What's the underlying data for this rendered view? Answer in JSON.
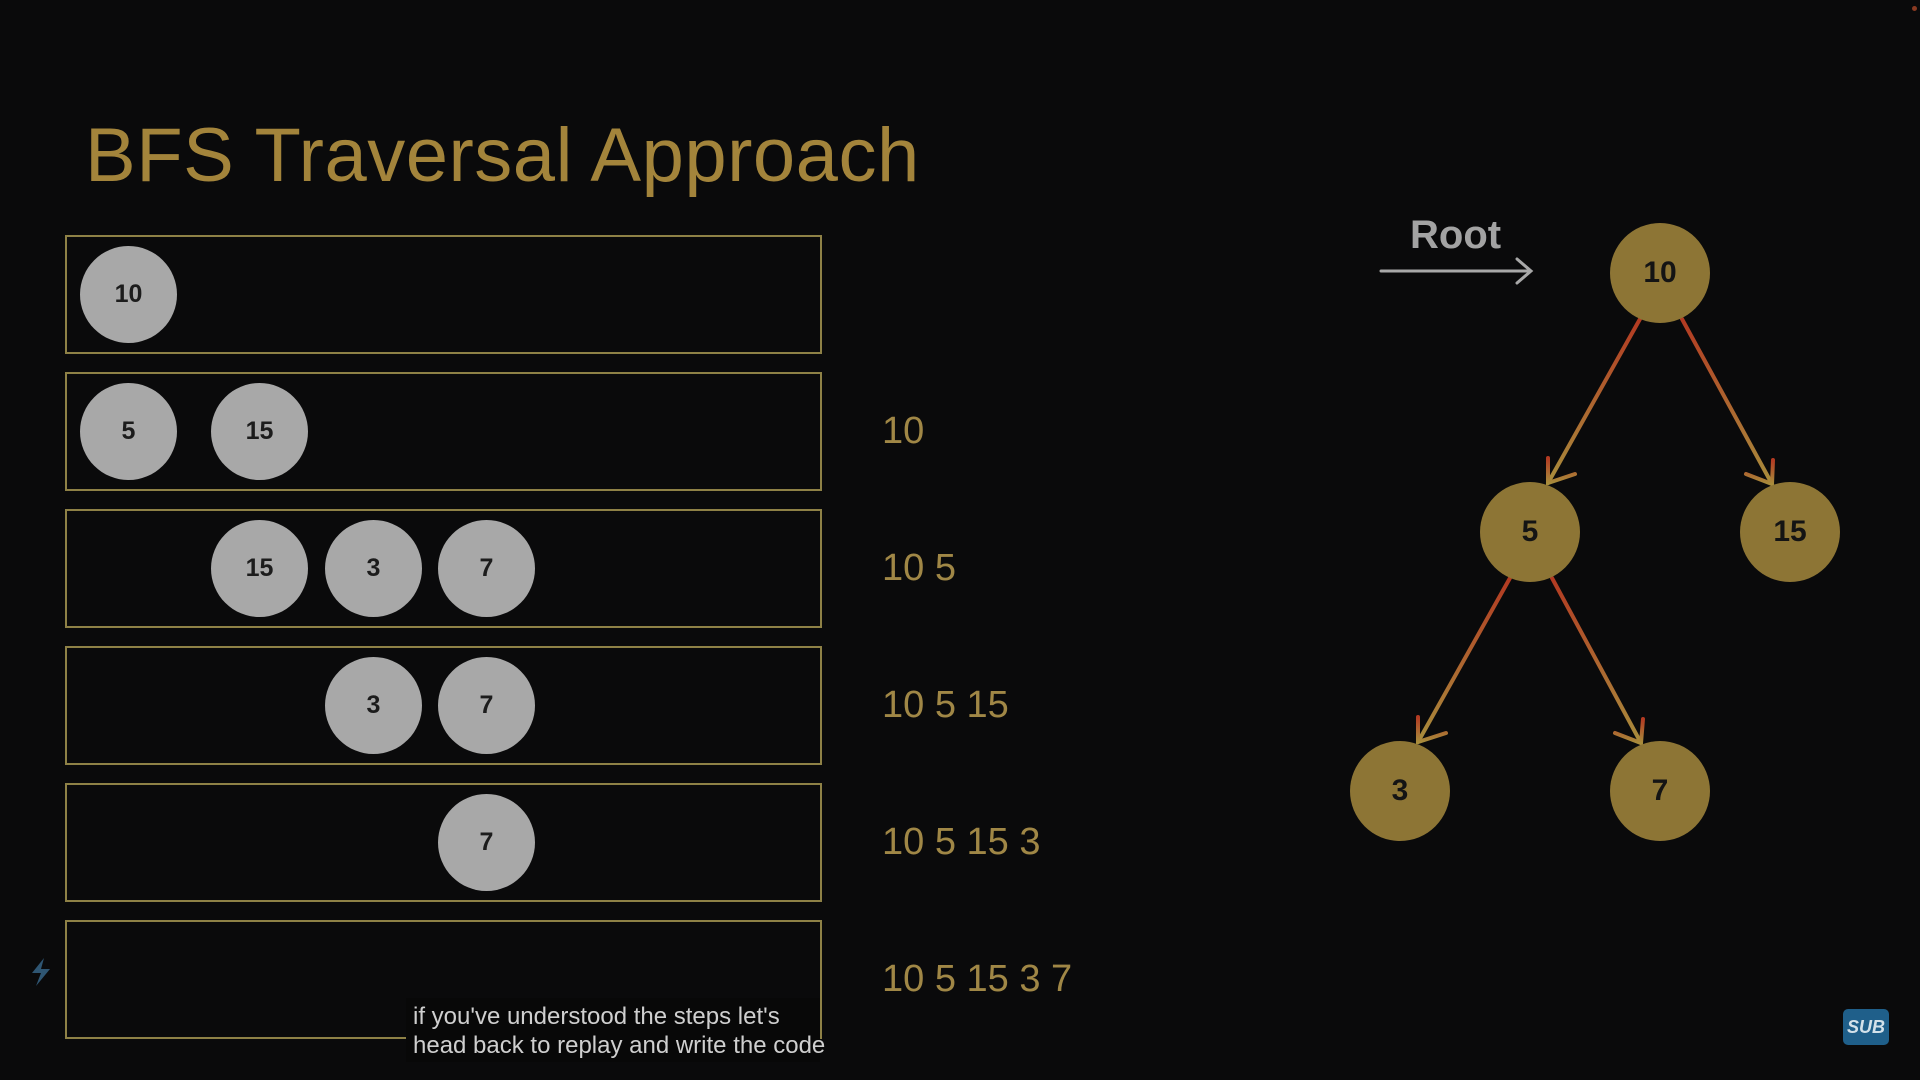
{
  "slide": {
    "title": "BFS Traversal Approach"
  },
  "queue_rows": [
    {
      "nodes": [
        "10"
      ],
      "output": ""
    },
    {
      "nodes": [
        "5",
        "15"
      ],
      "output": "10"
    },
    {
      "nodes": [
        "15",
        "3",
        "7"
      ],
      "output": "10 5"
    },
    {
      "nodes": [
        "3",
        "7"
      ],
      "output": "10 5 15"
    },
    {
      "nodes": [
        "7"
      ],
      "output": "10 5 15 3"
    },
    {
      "nodes": [],
      "output": "10 5 15 3 7"
    }
  ],
  "tree": {
    "root_label": "Root",
    "nodes": [
      {
        "id": "n10",
        "label": "10"
      },
      {
        "id": "n5",
        "label": "5"
      },
      {
        "id": "n15",
        "label": "15"
      },
      {
        "id": "n3",
        "label": "3"
      },
      {
        "id": "n7",
        "label": "7"
      }
    ],
    "edges": [
      {
        "from": "n10",
        "to": "n5"
      },
      {
        "from": "n10",
        "to": "n15"
      },
      {
        "from": "n5",
        "to": "n3"
      },
      {
        "from": "n5",
        "to": "n7"
      }
    ]
  },
  "subtitle": {
    "line1": "if you've understood the steps let's",
    "line2": "head back to replay and write the code"
  },
  "badge": {
    "label": "SUB"
  },
  "colors": {
    "title": "#a3843b",
    "queue_node": "#a8a8a8",
    "tree_node": "#8d7535",
    "edge_start": "#b33a22",
    "edge_end": "#a88d3c",
    "row_border": "#8e8146"
  }
}
